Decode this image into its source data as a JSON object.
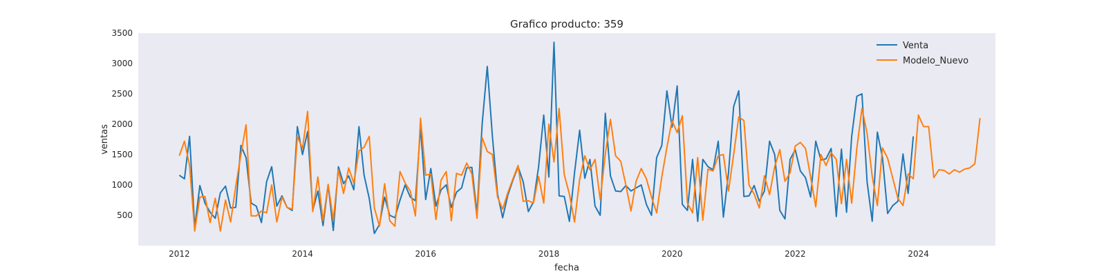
{
  "chart_data": {
    "type": "line",
    "title": "Grafico producto: 359",
    "xlabel": "fecha",
    "ylabel": "ventas",
    "xlim": [
      "2011-05-01",
      "2025-04-01"
    ],
    "ylim": [
      0,
      3500
    ],
    "x_ticks": [
      "2012",
      "2014",
      "2016",
      "2018",
      "2020",
      "2022",
      "2024"
    ],
    "y_ticks": [
      500,
      1000,
      1500,
      2000,
      2500,
      3000,
      3500
    ],
    "grid": false,
    "legend_position": "top-right",
    "x_start": "2012-01",
    "x_step": "month",
    "series": [
      {
        "name": "Venta",
        "color": "#1f77b4",
        "values": [
          1160,
          1100,
          1800,
          300,
          990,
          700,
          550,
          450,
          870,
          980,
          620,
          630,
          1650,
          1450,
          700,
          650,
          380,
          1050,
          1300,
          650,
          820,
          630,
          580,
          1960,
          1500,
          1880,
          580,
          900,
          330,
          1000,
          250,
          1300,
          1020,
          1150,
          920,
          1960,
          1160,
          780,
          200,
          350,
          800,
          500,
          460,
          750,
          1000,
          800,
          740,
          1950,
          760,
          1270,
          650,
          920,
          1000,
          630,
          880,
          950,
          1280,
          1290,
          530,
          2000,
          2950,
          1800,
          850,
          460,
          830,
          1080,
          1300,
          1050,
          560,
          720,
          1300,
          2150,
          1130,
          3350,
          820,
          810,
          400,
          1200,
          1900,
          1110,
          1420,
          650,
          500,
          2180,
          1150,
          900,
          890,
          990,
          900,
          950,
          1000,
          680,
          500,
          1450,
          1650,
          2550,
          1950,
          2630,
          680,
          580,
          1420,
          400,
          1420,
          1300,
          1250,
          1720,
          470,
          1200,
          2290,
          2550,
          810,
          820,
          990,
          730,
          900,
          1720,
          1500,
          580,
          440,
          1420,
          1580,
          1230,
          1120,
          800,
          1720,
          1410,
          1430,
          1600,
          480,
          1590,
          550,
          1800,
          2460,
          2500,
          1050,
          400,
          1870,
          1450,
          530,
          660,
          730,
          1510,
          860,
          1800
        ]
      },
      {
        "name": "Modelo_Nuevo",
        "color": "#ff7f0e",
        "values": [
          1480,
          1720,
          1320,
          240,
          800,
          810,
          380,
          780,
          240,
          750,
          390,
          980,
          1500,
          1990,
          490,
          490,
          570,
          540,
          1000,
          390,
          800,
          630,
          600,
          1800,
          1600,
          2210,
          560,
          1130,
          410,
          1010,
          420,
          1250,
          860,
          1280,
          1030,
          1560,
          1620,
          1800,
          620,
          320,
          1020,
          410,
          320,
          1220,
          1030,
          900,
          490,
          2100,
          1160,
          1180,
          430,
          1080,
          1220,
          410,
          1190,
          1160,
          1360,
          1180,
          450,
          1780,
          1550,
          1500,
          800,
          600,
          870,
          1100,
          1320,
          730,
          740,
          700,
          1140,
          700,
          2000,
          1380,
          2260,
          1170,
          850,
          390,
          1090,
          1480,
          1250,
          1420,
          760,
          1510,
          2080,
          1480,
          1390,
          1000,
          570,
          1060,
          1270,
          1100,
          800,
          540,
          1130,
          1620,
          2060,
          1860,
          2140,
          700,
          540,
          1450,
          420,
          1260,
          1230,
          1480,
          1500,
          900,
          1500,
          2120,
          2060,
          1000,
          850,
          620,
          1150,
          840,
          1300,
          1580,
          1060,
          1200,
          1640,
          1700,
          1600,
          1130,
          640,
          1500,
          1320,
          1530,
          1420,
          690,
          1420,
          700,
          1600,
          2260,
          1850,
          1140,
          660,
          1610,
          1440,
          1110,
          780,
          660,
          1180,
          1100,
          2150,
          1960,
          1960,
          1120,
          1250,
          1240,
          1180,
          1250,
          1210,
          1260,
          1280,
          1350,
          2100
        ]
      }
    ]
  }
}
